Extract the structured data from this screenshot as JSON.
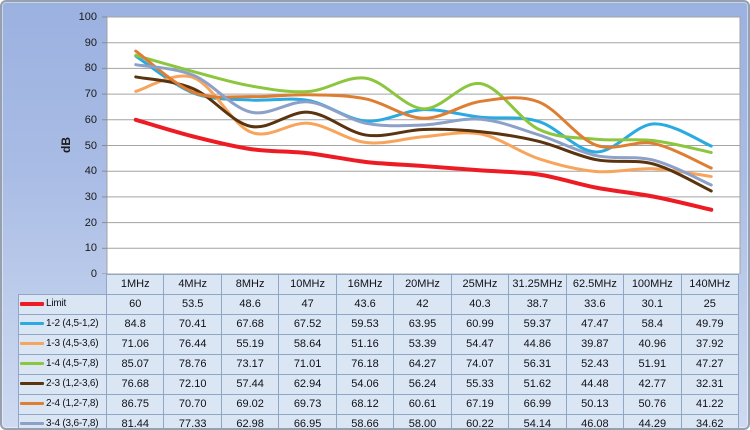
{
  "chart_data": {
    "type": "line",
    "title": "",
    "ylabel": "dB",
    "xlabel": "",
    "ylim": [
      0,
      100
    ],
    "ytick_step": 10,
    "yticks": [
      0,
      10,
      20,
      30,
      40,
      50,
      60,
      70,
      80,
      90,
      100
    ],
    "grid": "horizontal",
    "smooth_lines": true,
    "legend_position": "table-left",
    "categories": [
      "1MHz",
      "4MHz",
      "8MHz",
      "10MHz",
      "16MHz",
      "20MHz",
      "25MHz",
      "31.25MHz",
      "62.5MHz",
      "100MHz",
      "140MHz"
    ],
    "series": [
      {
        "name": "Limit",
        "color": "#ED1C24",
        "line_width": 4,
        "values": [
          "60",
          "53.5",
          "48.6",
          "47",
          "43.6",
          "42",
          "40.3",
          "38.7",
          "33.6",
          "30.1",
          "25"
        ]
      },
      {
        "name": "1-2 (4,5-1,2)",
        "color": "#29ABE2",
        "line_width": 3,
        "values": [
          "84.8",
          "70.41",
          "67.68",
          "67.52",
          "59.53",
          "63.95",
          "60.99",
          "59.37",
          "47.47",
          "58.4",
          "49.79"
        ]
      },
      {
        "name": "1-3 (4,5-3,6)",
        "color": "#F7A55C",
        "line_width": 3,
        "values": [
          "71.06",
          "76.44",
          "55.19",
          "58.64",
          "51.16",
          "53.39",
          "54.47",
          "44.86",
          "39.87",
          "40.96",
          "37.92"
        ]
      },
      {
        "name": "1-4 (4,5-7,8)",
        "color": "#8CC63F",
        "line_width": 3,
        "values": [
          "85.07",
          "78.76",
          "73.17",
          "71.01",
          "76.18",
          "64.27",
          "74.07",
          "56.31",
          "52.43",
          "51.91",
          "47.27"
        ]
      },
      {
        "name": "2-3 (1,2-3,6)",
        "color": "#5A330F",
        "line_width": 3,
        "values": [
          "76.68",
          "72.10",
          "57.44",
          "62.94",
          "54.06",
          "56.24",
          "55.33",
          "51.62",
          "44.48",
          "42.77",
          "32.31"
        ]
      },
      {
        "name": "2-4 (1,2-7,8)",
        "color": "#DE7E32",
        "line_width": 3,
        "values": [
          "86.75",
          "70.70",
          "69.02",
          "69.73",
          "68.12",
          "60.61",
          "67.19",
          "66.99",
          "50.13",
          "50.76",
          "41.22"
        ]
      },
      {
        "name": "3-4 (3,6-7,8)",
        "color": "#8DA0C8",
        "line_width": 3,
        "values": [
          "81.44",
          "77.33",
          "62.98",
          "66.95",
          "58.66",
          "58.00",
          "60.22",
          "54.14",
          "46.08",
          "44.29",
          "34.62"
        ]
      }
    ],
    "colors": {
      "plot_background": "#FFFFFF",
      "gridline": "#A3A3A3",
      "table_cell_fill": "#DAE6F4",
      "table_border": "#8FA6C6",
      "frame_gradient_top": "#9BB1E0",
      "frame_gradient_bottom": "#CEDAF1"
    }
  }
}
